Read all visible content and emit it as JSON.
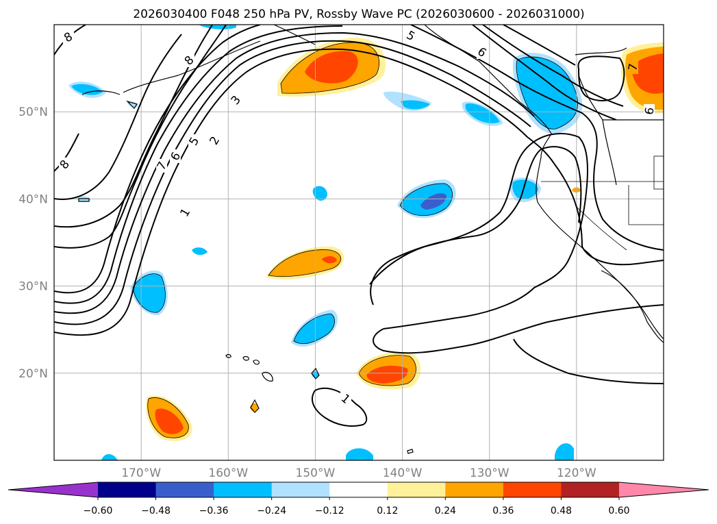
{
  "title": "2026030400 F048 250 hPa PV, Rossby Wave PC (2026030600 - 2026031000)",
  "map": {
    "lon_range": [
      -180,
      -110
    ],
    "lat_range": [
      10,
      60
    ],
    "lon_ticks": [
      {
        "value": -170,
        "label": "170°W"
      },
      {
        "value": -160,
        "label": "160°W"
      },
      {
        "value": -150,
        "label": "150°W"
      },
      {
        "value": -140,
        "label": "140°W"
      },
      {
        "value": -130,
        "label": "130°W"
      },
      {
        "value": -120,
        "label": "120°W"
      }
    ],
    "lat_ticks": [
      {
        "value": 20,
        "label": "20°N"
      },
      {
        "value": 30,
        "label": "30°N"
      },
      {
        "value": 40,
        "label": "40°N"
      },
      {
        "value": 50,
        "label": "50°N"
      }
    ],
    "grid": true,
    "contour_labels": [
      "1",
      "2",
      "3",
      "5",
      "6",
      "7",
      "8"
    ]
  },
  "colorbar": {
    "extend": "both",
    "colors": [
      "#9932cc",
      "#00008b",
      "#3a5fcd",
      "#00bfff",
      "#b0e2ff",
      "#ffffff",
      "#fff09a",
      "#ffa500",
      "#ff4500",
      "#b22222",
      "#ff88aa"
    ],
    "tick_labels": [
      "−0.60",
      "−0.48",
      "−0.36",
      "−0.24",
      "−0.12",
      "0.12",
      "0.24",
      "0.36",
      "0.48",
      "0.60"
    ]
  },
  "colors": {
    "positive_inner": "#ff4500",
    "positive_mid": "#ffa500",
    "positive_outer": "#fff09a",
    "negative_inner": "#3a5fcd",
    "negative_mid": "#00bfff",
    "negative_outer": "#b0e2ff"
  }
}
